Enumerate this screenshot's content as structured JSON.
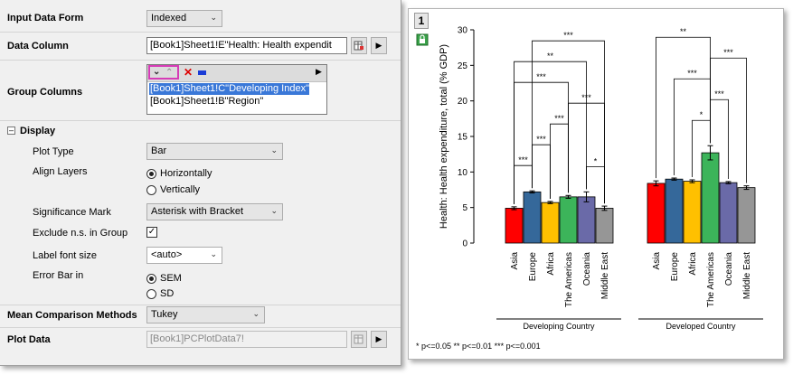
{
  "dialog": {
    "input_data_form": {
      "label": "Input Data Form",
      "value": "Indexed"
    },
    "data_column": {
      "label": "Data Column",
      "value": "[Book1]Sheet1!E\"Health: Health expendit"
    },
    "group_columns": {
      "label": "Group Columns",
      "items": [
        "[Book1]Sheet1!C\"Developing Index\"",
        "[Book1]Sheet1!B\"Region\""
      ]
    },
    "display": {
      "label": "Display",
      "plot_type": {
        "label": "Plot Type",
        "value": "Bar"
      },
      "align_layers": {
        "label": "Align Layers",
        "options": [
          "Horizontally",
          "Vertically"
        ],
        "selected": "Horizontally"
      },
      "significance_mark": {
        "label": "Significance Mark",
        "value": "Asterisk with Bracket"
      },
      "exclude_ns": {
        "label": "Exclude n.s. in Group",
        "checked": true
      },
      "label_font_size": {
        "label": "Label font size",
        "value": "<auto>"
      },
      "error_bar_in": {
        "label": "Error Bar in",
        "options": [
          "SEM",
          "SD"
        ],
        "selected": "SEM"
      }
    },
    "mean_comparison": {
      "label": "Mean Comparison Methods",
      "value": "Tukey"
    },
    "plot_data": {
      "label": "Plot Data",
      "value": "[Book1]PCPlotData7!"
    }
  },
  "graph": {
    "layer_number": "1",
    "footnote": "* p<=0.05    ** p<=0.01    *** p<=0.001"
  },
  "chart_data": {
    "type": "bar",
    "ylabel": "Health: Health expenditure, total (% GDP)",
    "ylim": [
      0,
      30
    ],
    "yticks": [
      "0",
      "5",
      "10",
      "15",
      "20",
      "25",
      "30"
    ],
    "categories": [
      "Asia",
      "Europe",
      "Africa",
      "The Americas",
      "Oceania",
      "Middle East"
    ],
    "colors": [
      "#ff0000",
      "#35689a",
      "#ffc000",
      "#3cb45a",
      "#6a6aa8",
      "#969696"
    ],
    "groups": [
      {
        "name": "Developing Country",
        "values": [
          4.9,
          7.2,
          5.7,
          6.5,
          6.5,
          4.9
        ],
        "errors": [
          0.2,
          0.15,
          0.15,
          0.2,
          0.7,
          0.3
        ],
        "brackets": [
          {
            "from": 0,
            "to": 1,
            "label": "***"
          },
          {
            "from": 1,
            "to": 2,
            "label": "***"
          },
          {
            "from": 2,
            "to": 3,
            "label": "***"
          },
          {
            "from": 4,
            "to": 5,
            "label": "*"
          },
          {
            "from": 3,
            "to": 5,
            "label": "***"
          },
          {
            "from": 0,
            "to": 3,
            "label": "***"
          },
          {
            "from": 0,
            "to": 4,
            "label": "**"
          },
          {
            "from": 1,
            "to": 5,
            "label": "***"
          }
        ]
      },
      {
        "name": "Developed Country",
        "values": [
          8.4,
          9.0,
          8.7,
          12.7,
          8.5,
          7.8
        ],
        "errors": [
          0.35,
          0.15,
          0.2,
          1.0,
          0.15,
          0.25
        ],
        "brackets": [
          {
            "from": 2,
            "to": 3,
            "label": "*"
          },
          {
            "from": 3,
            "to": 4,
            "label": "***"
          },
          {
            "from": 1,
            "to": 3,
            "label": "***"
          },
          {
            "from": 3,
            "to": 5,
            "label": "***"
          },
          {
            "from": 0,
            "to": 3,
            "label": "**"
          }
        ]
      }
    ]
  }
}
